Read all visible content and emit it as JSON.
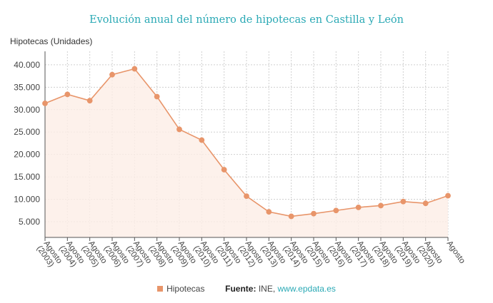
{
  "chart_data": {
    "type": "area",
    "title": "Evolución anual del número de hipotecas en Castilla y León",
    "ylabel": "Hipotecas (Unidades)",
    "xlabel": "",
    "categories": [
      "Agosto (2003)",
      "Agosto (2004)",
      "Agosto (2005)",
      "Agosto (2006)",
      "Agosto (2007)",
      "Agosto (2008)",
      "Agosto (2009)",
      "Agosto (2010)",
      "Agosto (2011)",
      "Agosto (2012)",
      "Agosto (2013)",
      "Agosto (2014)",
      "Agosto (2015)",
      "Agosto (2016)",
      "Agosto (2017)",
      "Agosto (2018)",
      "Agosto (2019)",
      "Agosto (2020)",
      "Agosto"
    ],
    "series": [
      {
        "name": "Hipotecas",
        "values": [
          31400,
          33400,
          32000,
          37800,
          39100,
          32900,
          25600,
          23200,
          16600,
          10700,
          7200,
          6200,
          6800,
          7500,
          8200,
          8600,
          9500,
          9100,
          10800
        ]
      }
    ],
    "ylim": [
      1500,
      43000
    ],
    "yticks": [
      5000,
      10000,
      15000,
      20000,
      25000,
      30000,
      35000,
      40000
    ],
    "ytick_labels": [
      "5.000",
      "10.000",
      "15.000",
      "20.000",
      "25.000",
      "30.000",
      "35.000",
      "40.000"
    ],
    "grid": true,
    "legend_position": "bottom-center",
    "colors": {
      "line": "#e8956a",
      "fill": "#fdeee6",
      "grid": "#cfcfcf",
      "axis": "#555555"
    }
  },
  "footer": {
    "legend_label": "Hipotecas",
    "source_label": "Fuente:",
    "source_text": "INE,",
    "source_link": "www.epdata.es"
  }
}
